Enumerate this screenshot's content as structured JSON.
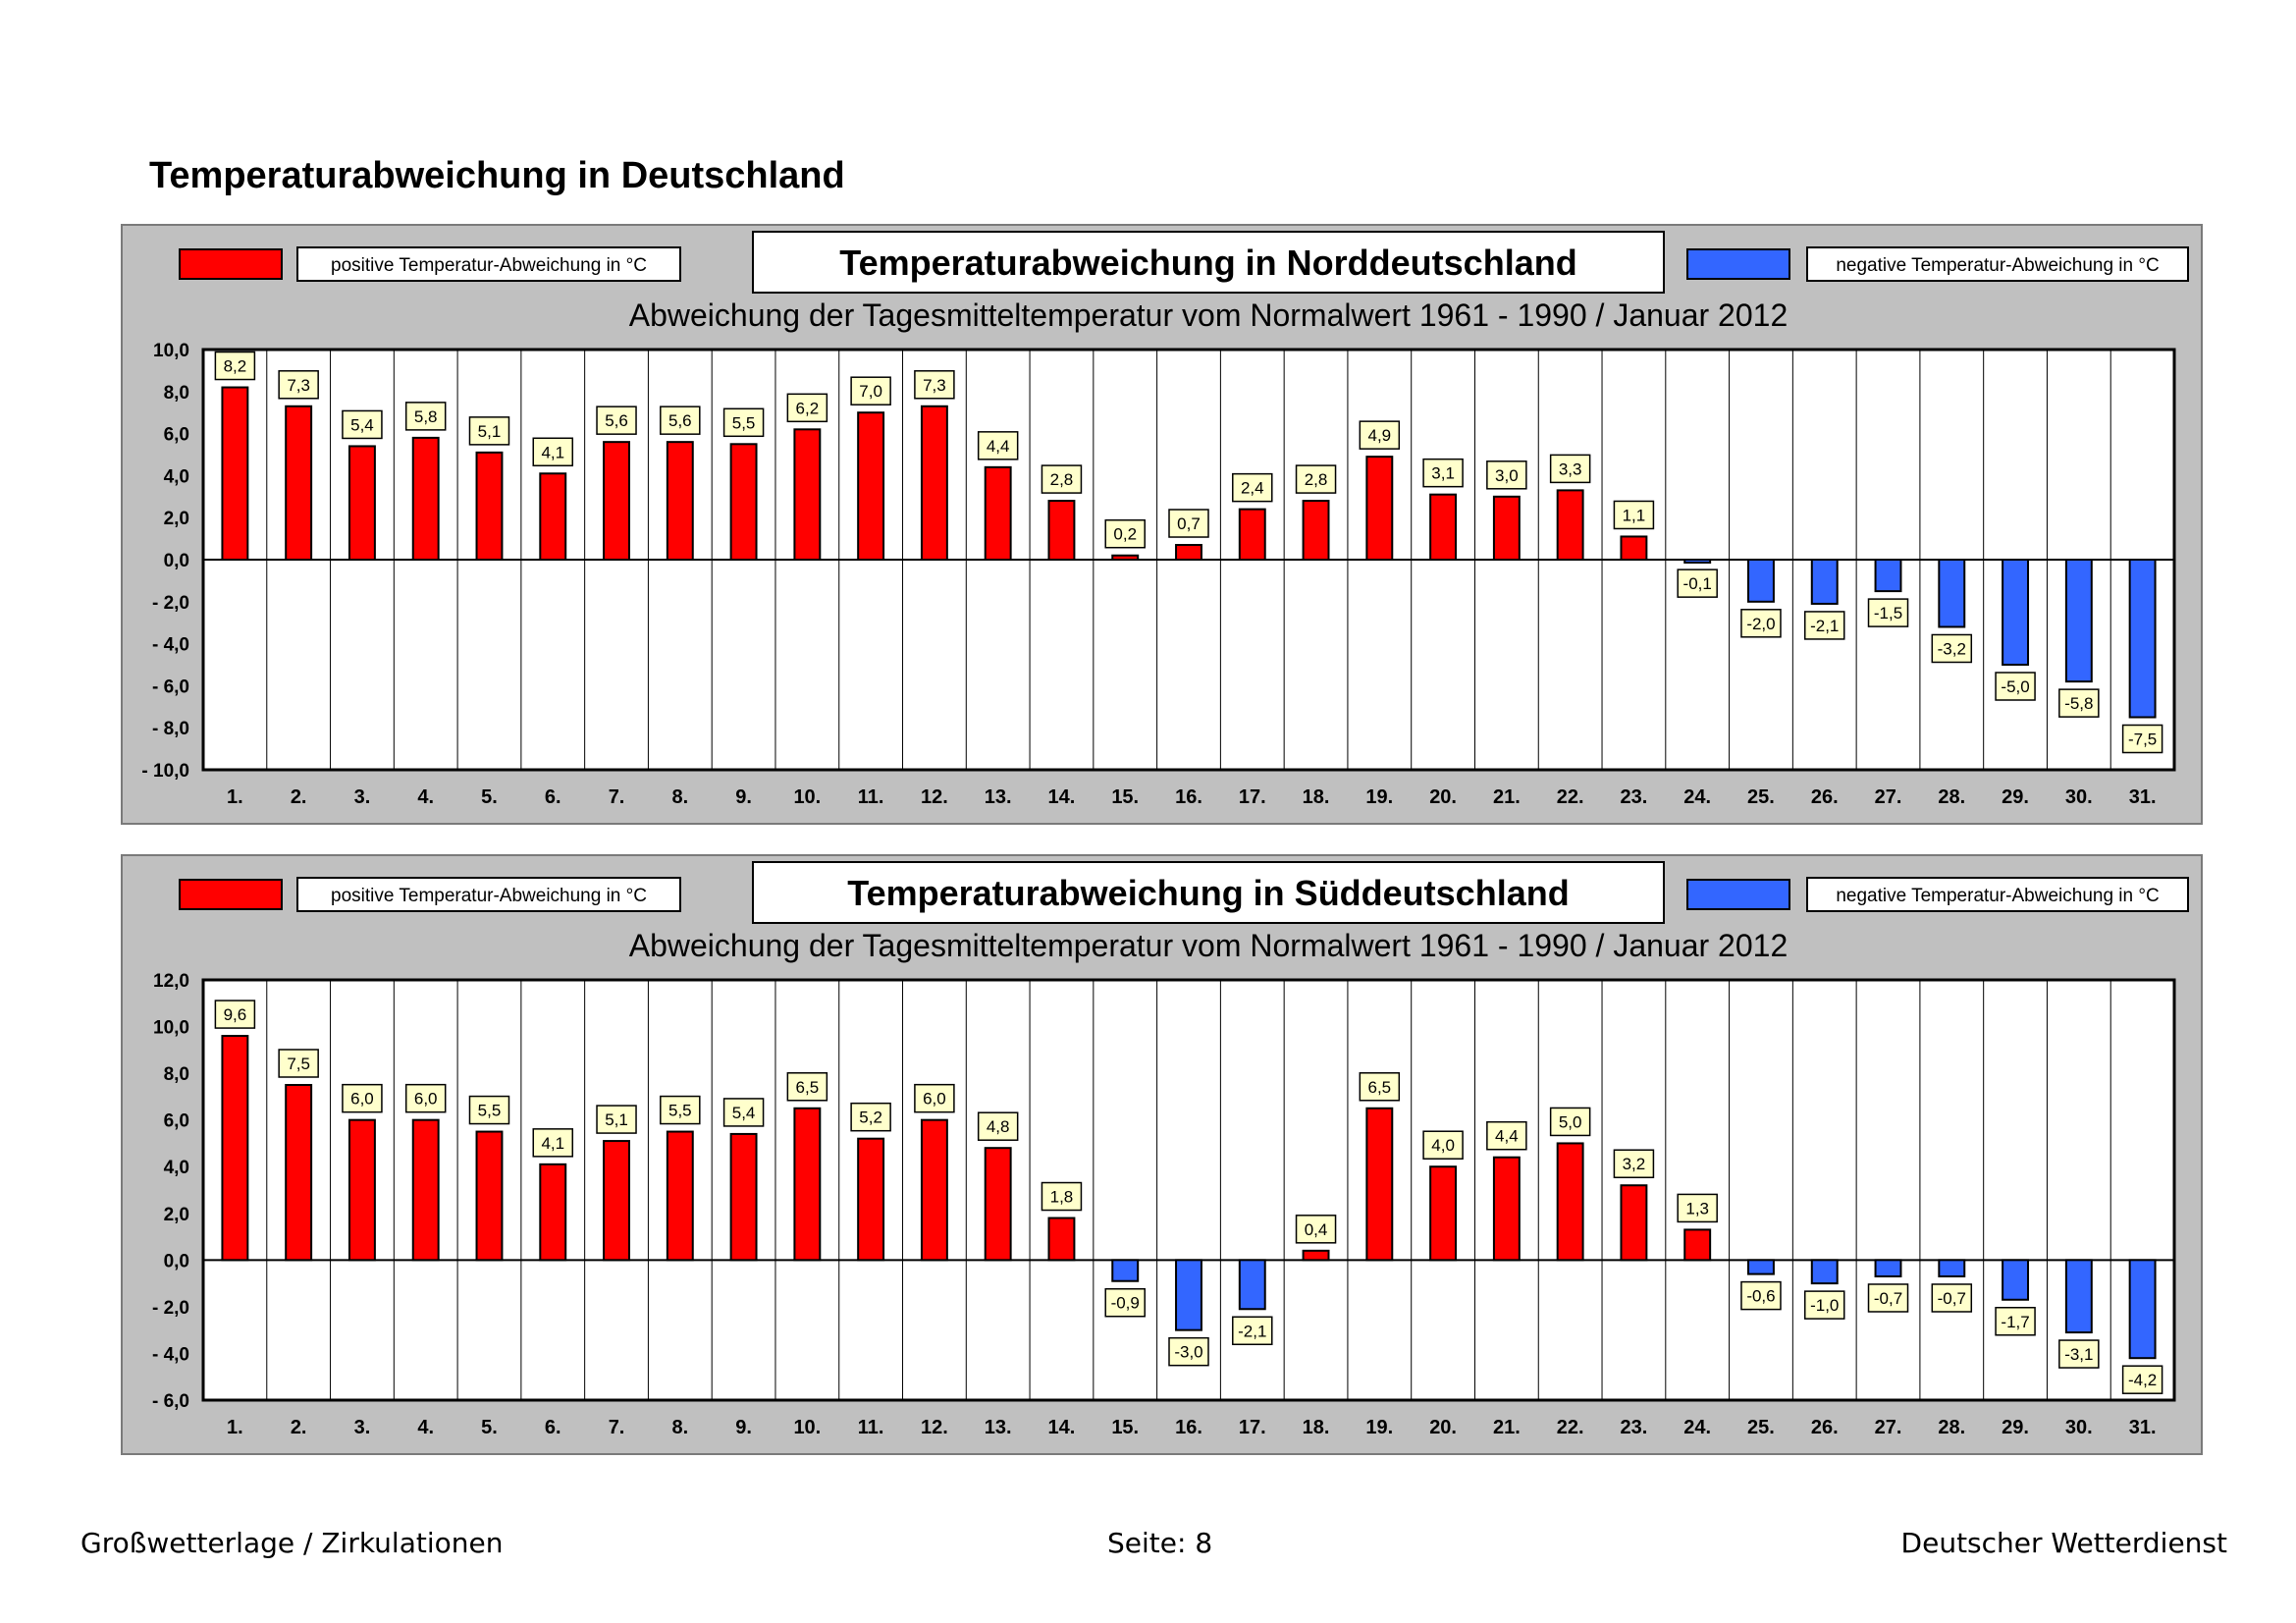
{
  "page": {
    "title": "Temperaturabweichung in Deutschland",
    "footer_left": "Großwetterlage / Zirkulationen",
    "footer_center": "Seite: 8",
    "footer_right": "Deutscher Wetterdienst"
  },
  "colors": {
    "positive": "#ff0000",
    "negative": "#3366ff",
    "panel": "#c0c0c0",
    "label_box": "#ffffcc"
  },
  "chart_data": [
    {
      "type": "bar",
      "title": "Temperaturabweichung in Norddeutschland",
      "subtitle": "Abweichung der Tagesmitteltemperatur vom Normalwert 1961 - 1990  /  Januar 2012",
      "legend_positive": "positive Temperatur-Abweichung in °C",
      "legend_negative": "negative Temperatur-Abweichung in °C",
      "categories": [
        "1.",
        "2.",
        "3.",
        "4.",
        "5.",
        "6.",
        "7.",
        "8.",
        "9.",
        "10.",
        "11.",
        "12.",
        "13.",
        "14.",
        "15.",
        "16.",
        "17.",
        "18.",
        "19.",
        "20.",
        "21.",
        "22.",
        "23.",
        "24.",
        "25.",
        "26.",
        "27.",
        "28.",
        "29.",
        "30.",
        "31."
      ],
      "values": [
        8.2,
        7.3,
        5.4,
        5.8,
        5.1,
        4.1,
        5.6,
        5.6,
        5.5,
        6.2,
        7.0,
        7.3,
        4.4,
        2.8,
        0.2,
        0.7,
        2.4,
        2.8,
        4.9,
        3.1,
        3.0,
        3.3,
        1.1,
        -0.1,
        -2.0,
        -2.1,
        -1.5,
        -3.2,
        -5.0,
        -5.8,
        -7.5
      ],
      "value_labels": [
        "8,2",
        "7,3",
        "5,4",
        "5,8",
        "5,1",
        "4,1",
        "5,6",
        "5,6",
        "5,5",
        "6,2",
        "7,0",
        "7,3",
        "4,4",
        "2,8",
        "0,2",
        "0,7",
        "2,4",
        "2,8",
        "4,9",
        "3,1",
        "3,0",
        "3,3",
        "1,1",
        "-0,1",
        "-2,0",
        "-2,1",
        "-1,5",
        "-3,2",
        "-5,0",
        "-5,8",
        "-7,5"
      ],
      "ylim": [
        -10,
        10
      ],
      "yticks": [
        10,
        8,
        6,
        4,
        2,
        0,
        -2,
        -4,
        -6,
        -8,
        -10
      ],
      "ytick_labels": [
        "10,0",
        "8,0",
        "6,0",
        "4,0",
        "2,0",
        "0,0",
        "- 2,0",
        "- 4,0",
        "- 6,0",
        "- 8,0",
        "- 10,0"
      ]
    },
    {
      "type": "bar",
      "title": "Temperaturabweichung in Süddeutschland",
      "subtitle": "Abweichung der Tagesmitteltemperatur vom Normalwert 1961 - 1990  /  Januar 2012",
      "legend_positive": "positive Temperatur-Abweichung in °C",
      "legend_negative": "negative Temperatur-Abweichung in °C",
      "categories": [
        "1.",
        "2.",
        "3.",
        "4.",
        "5.",
        "6.",
        "7.",
        "8.",
        "9.",
        "10.",
        "11.",
        "12.",
        "13.",
        "14.",
        "15.",
        "16.",
        "17.",
        "18.",
        "19.",
        "20.",
        "21.",
        "22.",
        "23.",
        "24.",
        "25.",
        "26.",
        "27.",
        "28.",
        "29.",
        "30.",
        "31."
      ],
      "values": [
        9.6,
        7.5,
        6.0,
        6.0,
        5.5,
        4.1,
        5.1,
        5.5,
        5.4,
        6.5,
        5.2,
        6.0,
        4.8,
        1.8,
        -0.9,
        -3.0,
        -2.1,
        0.4,
        6.5,
        4.0,
        4.4,
        5.0,
        3.2,
        1.3,
        -0.6,
        -1.0,
        -0.7,
        -0.7,
        -1.7,
        -3.1,
        -4.2
      ],
      "value_labels": [
        "9,6",
        "7,5",
        "6,0",
        "6,0",
        "5,5",
        "4,1",
        "5,1",
        "5,5",
        "5,4",
        "6,5",
        "5,2",
        "6,0",
        "4,8",
        "1,8",
        "-0,9",
        "-3,0",
        "-2,1",
        "0,4",
        "6,5",
        "4,0",
        "4,4",
        "5,0",
        "3,2",
        "1,3",
        "-0,6",
        "-1,0",
        "-0,7",
        "-0,7",
        "-1,7",
        "-3,1",
        "-4,2"
      ],
      "ylim": [
        -6,
        12
      ],
      "yticks": [
        12,
        10,
        8,
        6,
        4,
        2,
        0,
        -2,
        -4,
        -6
      ],
      "ytick_labels": [
        "12,0",
        "10,0",
        "8,0",
        "6,0",
        "4,0",
        "2,0",
        "0,0",
        "- 2,0",
        "- 4,0",
        "- 6,0"
      ]
    }
  ]
}
